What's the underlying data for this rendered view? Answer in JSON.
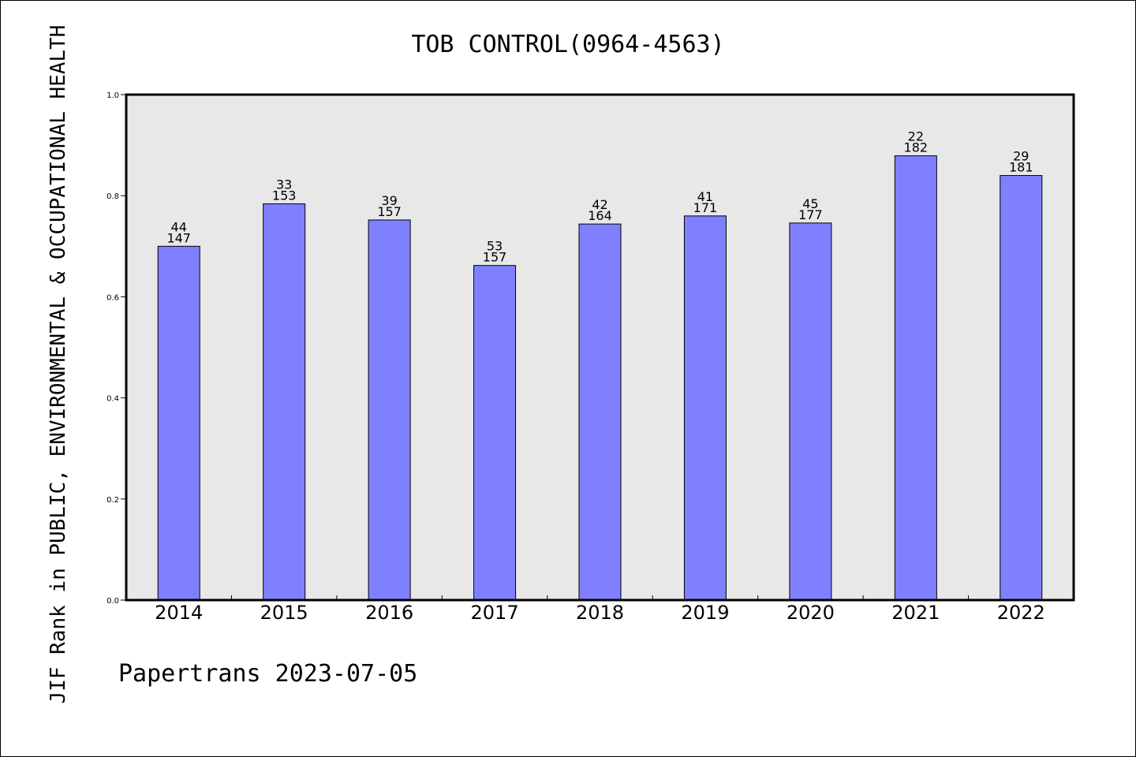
{
  "chart_data": {
    "type": "bar",
    "title": "TOB CONTROL(0964-4563)",
    "ylabel": "JIF Rank in PUBLIC, ENVIRONMENTAL & OCCUPATIONAL HEALTH",
    "xlabel": "",
    "categories": [
      "2014",
      "2015",
      "2016",
      "2017",
      "2018",
      "2019",
      "2020",
      "2021",
      "2022"
    ],
    "values": [
      0.7,
      0.784,
      0.752,
      0.662,
      0.744,
      0.76,
      0.746,
      0.879,
      0.84
    ],
    "rank": [
      "44",
      "33",
      "39",
      "53",
      "42",
      "41",
      "45",
      "22",
      "29"
    ],
    "total": [
      "147",
      "153",
      "157",
      "157",
      "164",
      "171",
      "177",
      "182",
      "181"
    ],
    "ylim": [
      0,
      1.0
    ],
    "yticks": [
      "0.0",
      "0.2",
      "0.4",
      "0.6",
      "0.8",
      "1.0"
    ],
    "grid": false,
    "bar_color": "#8080ff",
    "plot_background": "#e8e8e8"
  },
  "footer": "Papertrans 2023-07-05"
}
